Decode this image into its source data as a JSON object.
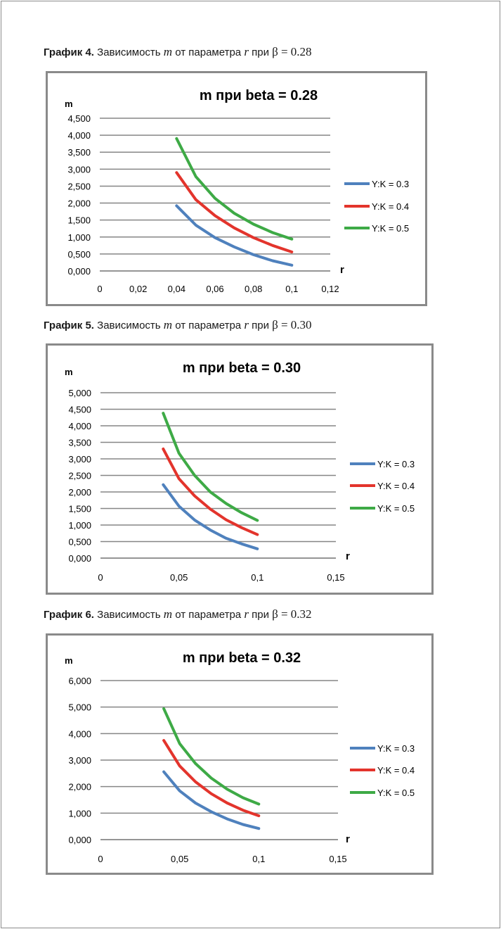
{
  "captions": [
    {
      "label": "График 4.",
      "text": "Зависимость",
      "var_m": "m",
      "mid": "от параметра",
      "var_r": "r",
      "pri": "при",
      "beta": "β",
      "eq": "= 0.28"
    },
    {
      "label": "График 5.",
      "text": "Зависимость",
      "var_m": "m",
      "mid": "от параметра",
      "var_r": "r",
      "pri": "при",
      "beta": "β",
      "eq": "= 0.30"
    },
    {
      "label": "График 6.",
      "text": "Зависимость",
      "var_m": "m",
      "mid": "от параметра",
      "var_r": "r",
      "pri": "при",
      "beta": "β",
      "eq": "= 0.32"
    }
  ],
  "colors": {
    "blue": "#4f81bd",
    "red": "#e3342c",
    "green": "#3eaa46",
    "grid": "#868686",
    "frame": "#8a8a8a"
  },
  "chart_data": [
    {
      "type": "line",
      "title": "m при beta = 0.28",
      "xlabel": "r",
      "ylabel": "m",
      "xlim": [
        0,
        0.12
      ],
      "ylim": [
        0,
        4.5
      ],
      "x_ticks": [
        "0",
        "0,02",
        "0,04",
        "0,06",
        "0,08",
        "0,1",
        "0,12"
      ],
      "y_ticks": [
        "0,000",
        "0,500",
        "1,000",
        "1,500",
        "2,000",
        "2,500",
        "3,000",
        "3,500",
        "4,000",
        "4,500"
      ],
      "x_tick_values": [
        0,
        0.02,
        0.04,
        0.06,
        0.08,
        0.1,
        0.12
      ],
      "y_tick_values": [
        0,
        0.5,
        1,
        1.5,
        2,
        2.5,
        3,
        3.5,
        4,
        4.5
      ],
      "grid": true,
      "legend": "right",
      "x": [
        0.04,
        0.05,
        0.06,
        0.07,
        0.08,
        0.09,
        0.1
      ],
      "series": [
        {
          "name": "Y:K = 0.3",
          "color": "#4f81bd",
          "values": [
            1.92,
            1.35,
            0.98,
            0.71,
            0.48,
            0.3,
            0.17
          ]
        },
        {
          "name": "Y:K = 0.4",
          "color": "#e3342c",
          "values": [
            2.9,
            2.1,
            1.63,
            1.27,
            0.98,
            0.75,
            0.56
          ]
        },
        {
          "name": "Y:K = 0.5",
          "color": "#3eaa46",
          "values": [
            3.9,
            2.78,
            2.14,
            1.7,
            1.38,
            1.13,
            0.94
          ]
        }
      ]
    },
    {
      "type": "line",
      "title": "m при beta = 0.30",
      "xlabel": "r",
      "ylabel": "m",
      "xlim": [
        0,
        0.15
      ],
      "ylim": [
        0,
        5
      ],
      "x_ticks": [
        "0",
        "0,05",
        "0,1",
        "0,15"
      ],
      "y_ticks": [
        "0,000",
        "0,500",
        "1,000",
        "1,500",
        "2,000",
        "2,500",
        "3,000",
        "3,500",
        "4,000",
        "4,500",
        "5,000"
      ],
      "x_tick_values": [
        0,
        0.05,
        0.1,
        0.15
      ],
      "y_tick_values": [
        0,
        0.5,
        1,
        1.5,
        2,
        2.5,
        3,
        3.5,
        4,
        4.5,
        5
      ],
      "grid": true,
      "legend": "right",
      "x": [
        0.04,
        0.05,
        0.06,
        0.07,
        0.08,
        0.09,
        0.1
      ],
      "series": [
        {
          "name": "Y:K = 0.3",
          "color": "#4f81bd",
          "values": [
            2.22,
            1.57,
            1.15,
            0.85,
            0.6,
            0.43,
            0.28
          ]
        },
        {
          "name": "Y:K = 0.4",
          "color": "#e3342c",
          "values": [
            3.3,
            2.4,
            1.88,
            1.48,
            1.16,
            0.92,
            0.71
          ]
        },
        {
          "name": "Y:K = 0.5",
          "color": "#3eaa46",
          "values": [
            4.38,
            3.17,
            2.5,
            2.0,
            1.65,
            1.37,
            1.14
          ]
        }
      ]
    },
    {
      "type": "line",
      "title": "m при beta = 0.32",
      "xlabel": "r",
      "ylabel": "m",
      "xlim": [
        0,
        0.15
      ],
      "ylim": [
        0,
        6
      ],
      "x_ticks": [
        "0",
        "0,05",
        "0,1",
        "0,15"
      ],
      "y_ticks": [
        "0,000",
        "1,000",
        "2,000",
        "3,000",
        "4,000",
        "5,000",
        "6,000"
      ],
      "x_tick_values": [
        0,
        0.05,
        0.1,
        0.15
      ],
      "y_tick_values": [
        0,
        1,
        2,
        3,
        4,
        5,
        6
      ],
      "grid": true,
      "legend": "right",
      "x": [
        0.04,
        0.05,
        0.06,
        0.07,
        0.08,
        0.09,
        0.1
      ],
      "series": [
        {
          "name": "Y:K = 0.3",
          "color": "#4f81bd",
          "values": [
            2.56,
            1.84,
            1.38,
            1.05,
            0.78,
            0.57,
            0.42
          ]
        },
        {
          "name": "Y:K = 0.4",
          "color": "#e3342c",
          "values": [
            3.74,
            2.78,
            2.18,
            1.73,
            1.38,
            1.11,
            0.9
          ]
        },
        {
          "name": "Y:K = 0.5",
          "color": "#3eaa46",
          "values": [
            4.94,
            3.62,
            2.87,
            2.32,
            1.9,
            1.58,
            1.34
          ]
        }
      ]
    }
  ]
}
